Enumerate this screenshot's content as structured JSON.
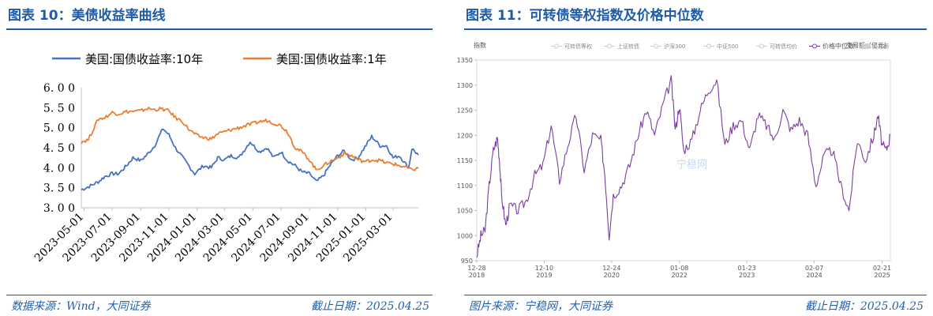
{
  "left": {
    "title": "图表 10：美债收益率曲线",
    "source": "数据来源：Wind，大同证券",
    "date": "截止日期：2025.04.25"
  },
  "right": {
    "title": "图表 11：可转债等权指数及价格中位数",
    "source": "图片来源：宁稳网，大同证券",
    "date": "截止日期：2025.04.25"
  },
  "chart_data": [
    {
      "type": "line",
      "title": "",
      "legend_position": "top",
      "ylim": [
        3.0,
        6.0
      ],
      "yticks": [
        "3.00",
        "3.50",
        "4.00",
        "4.50",
        "5.00",
        "5.50",
        "6.00"
      ],
      "xlim": [
        "2023-04-25",
        "2025-04-25"
      ],
      "xticks": [
        "2023-05-01",
        "2023-07-01",
        "2023-09-01",
        "2023-11-01",
        "2024-01-01",
        "2024-03-01",
        "2024-05-01",
        "2024-07-01",
        "2024-09-01",
        "2024-11-01",
        "2025-01-01",
        "2025-03-01"
      ],
      "grid": false,
      "series": [
        {
          "name": "美国:国债收益率:10年",
          "color": "#4472c4",
          "x": [
            "2023-04-25",
            "2023-05-15",
            "2023-06-01",
            "2023-06-15",
            "2023-07-01",
            "2023-07-15",
            "2023-08-01",
            "2023-08-15",
            "2023-09-01",
            "2023-09-15",
            "2023-10-01",
            "2023-10-19",
            "2023-11-01",
            "2023-11-15",
            "2023-12-01",
            "2023-12-27",
            "2024-01-15",
            "2024-02-01",
            "2024-02-15",
            "2024-03-01",
            "2024-03-15",
            "2024-04-01",
            "2024-04-25",
            "2024-05-15",
            "2024-06-01",
            "2024-06-15",
            "2024-07-01",
            "2024-07-15",
            "2024-08-01",
            "2024-08-15",
            "2024-09-01",
            "2024-09-16",
            "2024-10-01",
            "2024-10-15",
            "2024-11-01",
            "2024-11-15",
            "2024-12-01",
            "2024-12-15",
            "2025-01-14",
            "2025-02-01",
            "2025-02-15",
            "2025-03-01",
            "2025-03-15",
            "2025-04-04",
            "2025-04-11",
            "2025-04-25"
          ],
          "values": [
            3.45,
            3.55,
            3.65,
            3.78,
            3.85,
            3.85,
            4.05,
            4.25,
            4.18,
            4.33,
            4.55,
            4.98,
            4.82,
            4.5,
            4.25,
            3.85,
            4.05,
            4.0,
            4.25,
            4.2,
            4.3,
            4.25,
            4.65,
            4.4,
            4.5,
            4.25,
            4.4,
            4.18,
            4.05,
            3.9,
            3.85,
            3.65,
            3.8,
            4.05,
            4.3,
            4.42,
            4.2,
            4.25,
            4.78,
            4.55,
            4.55,
            4.25,
            4.3,
            4.0,
            4.48,
            4.32
          ]
        },
        {
          "name": "美国:国债收益率:1年",
          "color": "#ed7d31",
          "x": [
            "2023-04-25",
            "2023-05-10",
            "2023-06-01",
            "2023-06-15",
            "2023-07-01",
            "2023-07-15",
            "2023-08-01",
            "2023-09-01",
            "2023-09-15",
            "2023-10-01",
            "2023-10-15",
            "2023-11-01",
            "2023-11-15",
            "2023-12-01",
            "2023-12-15",
            "2024-01-01",
            "2024-01-15",
            "2024-02-01",
            "2024-02-15",
            "2024-03-01",
            "2024-03-15",
            "2024-04-01",
            "2024-04-15",
            "2024-05-01",
            "2024-05-15",
            "2024-06-01",
            "2024-06-15",
            "2024-07-01",
            "2024-07-15",
            "2024-08-01",
            "2024-08-15",
            "2024-09-01",
            "2024-09-15",
            "2024-10-01",
            "2024-10-15",
            "2024-11-01",
            "2024-11-15",
            "2024-12-01",
            "2024-12-15",
            "2025-01-01",
            "2025-01-15",
            "2025-02-01",
            "2025-02-15",
            "2025-03-01",
            "2025-03-15",
            "2025-04-01",
            "2025-04-08",
            "2025-04-25"
          ],
          "values": [
            4.65,
            4.7,
            5.22,
            5.25,
            5.38,
            5.35,
            5.4,
            5.42,
            5.48,
            5.45,
            5.47,
            5.42,
            5.25,
            5.15,
            4.95,
            4.8,
            4.75,
            4.72,
            4.85,
            4.9,
            4.95,
            5.0,
            5.05,
            5.1,
            5.15,
            5.18,
            5.12,
            5.05,
            4.9,
            4.5,
            4.4,
            4.2,
            3.95,
            4.05,
            4.15,
            4.25,
            4.35,
            4.3,
            4.2,
            4.15,
            4.2,
            4.18,
            4.12,
            4.1,
            4.05,
            4.0,
            3.95,
            3.98
          ]
        }
      ]
    },
    {
      "type": "line",
      "title": "",
      "ylabel": "指数",
      "y2label": "交易额（亿元）",
      "ylim": [
        950,
        1350
      ],
      "yticks": [
        "950",
        "1000",
        "1050",
        "1100",
        "1150",
        "1200",
        "1250",
        "1300",
        "1350"
      ],
      "xticks": [
        "12-28\n2018",
        "12-10\n2019",
        "12-24\n2020",
        "01-08\n2022",
        "01-23\n2023",
        "02-07\n2024",
        "02-21\n2025"
      ],
      "legend": [
        "可转债等权",
        "上证转债",
        "沪深300",
        "中证500",
        "可转债均价",
        "价格中位数",
        "交易额"
      ],
      "legend_position": "top",
      "watermark": "宁稳网",
      "series": [
        {
          "name": "价格中位数",
          "color": "#7b3f9e",
          "x": [
            0.0,
            0.01,
            0.02,
            0.03,
            0.04,
            0.05,
            0.055,
            0.06,
            0.07,
            0.08,
            0.1,
            0.12,
            0.14,
            0.16,
            0.18,
            0.2,
            0.22,
            0.24,
            0.26,
            0.28,
            0.3,
            0.31,
            0.32,
            0.33,
            0.35,
            0.37,
            0.39,
            0.41,
            0.43,
            0.45,
            0.47,
            0.48,
            0.49,
            0.5,
            0.52,
            0.54,
            0.56,
            0.58,
            0.6,
            0.62,
            0.64,
            0.66,
            0.68,
            0.7,
            0.72,
            0.74,
            0.76,
            0.78,
            0.8,
            0.82,
            0.84,
            0.86,
            0.88,
            0.9,
            0.92,
            0.94,
            0.96,
            0.97,
            0.98,
            0.99,
            1.0
          ],
          "values": [
            960,
            1000,
            1010,
            1100,
            1170,
            1195,
            1150,
            1080,
            1020,
            1060,
            1050,
            1070,
            1120,
            1140,
            1220,
            1110,
            1180,
            1240,
            1130,
            1200,
            1190,
            1120,
            1000,
            1080,
            1100,
            1140,
            1200,
            1250,
            1200,
            1260,
            1310,
            1210,
            1260,
            1170,
            1190,
            1250,
            1290,
            1310,
            1180,
            1220,
            1230,
            1170,
            1240,
            1220,
            1190,
            1250,
            1210,
            1230,
            1200,
            1100,
            1160,
            1170,
            1100,
            1050,
            1190,
            1150,
            1200,
            1240,
            1180,
            1170,
            1200
          ]
        }
      ]
    }
  ]
}
